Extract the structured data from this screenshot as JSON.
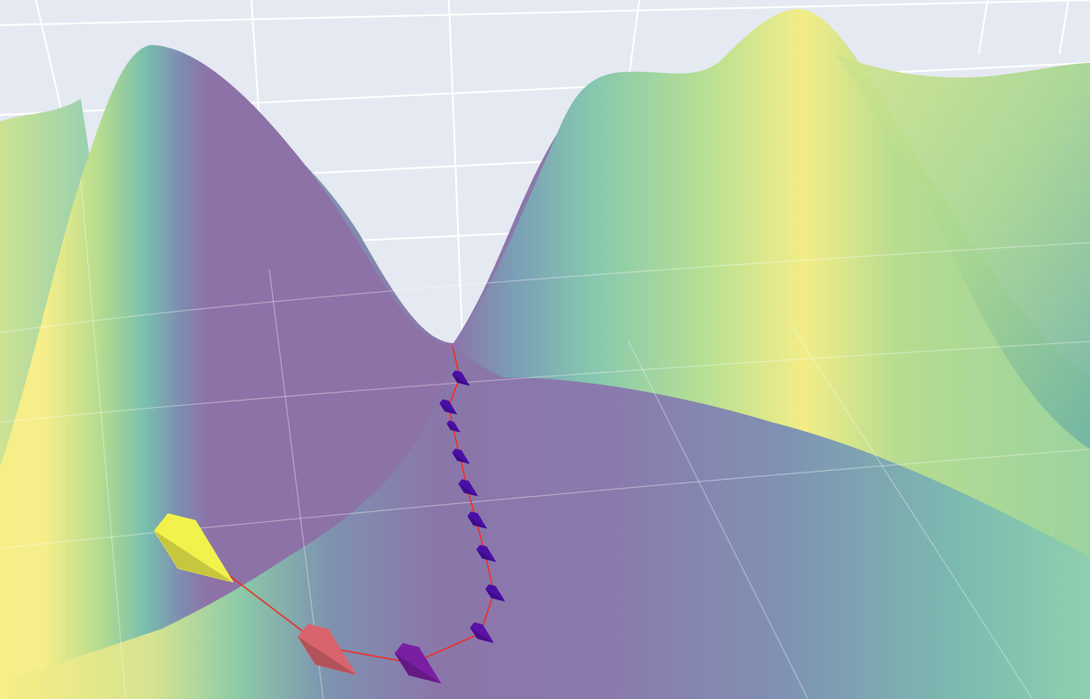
{
  "chart_data": {
    "type": "surface",
    "title": "",
    "colorscale": "viridis",
    "background": "#e5e9f2",
    "grid": true,
    "axes_visible": false,
    "surface": {
      "description_peaks": [
        {
          "name": "left-peak"
        },
        {
          "name": "right-peak"
        },
        {
          "name": "far-right-ridge"
        },
        {
          "name": "valley-minimum"
        }
      ]
    },
    "trajectory": {
      "line_color": "#e8322a",
      "points": [
        {
          "step": 0,
          "color": "#f2f24d"
        },
        {
          "step": 1,
          "color": "#d9646e"
        },
        {
          "step": 2,
          "color": "#7a1fa2"
        },
        {
          "step": 3,
          "color": "#5a12a8"
        },
        {
          "step": 4,
          "color": "#4b0fa6"
        },
        {
          "step": 5,
          "color": "#4b0fa6"
        },
        {
          "step": 6,
          "color": "#4b0fa6"
        },
        {
          "step": 7,
          "color": "#4b0fa6"
        },
        {
          "step": 8,
          "color": "#4b0fa6"
        },
        {
          "step": 9,
          "color": "#4b0fa6"
        },
        {
          "step": 10,
          "color": "#4b0fa6"
        },
        {
          "step": 11,
          "color": "#4b0fa6"
        }
      ]
    }
  }
}
